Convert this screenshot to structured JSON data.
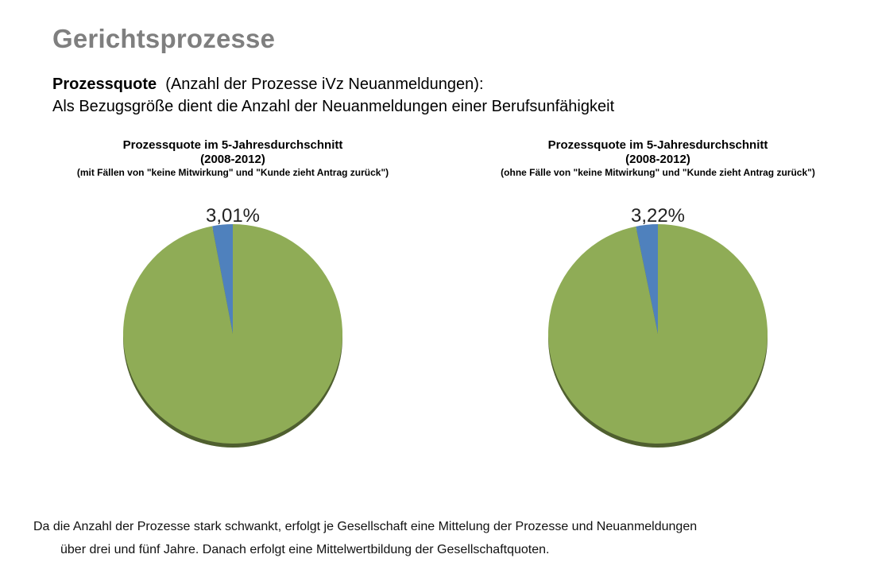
{
  "page": {
    "title": "Gerichtsprozesse",
    "subtitle_bold": "Prozessquote",
    "subtitle_rest": "(Anzahl der Prozesse iVz Neuanmeldungen):",
    "subtitle_line2": "Als Bezugsgröße dient die Anzahl der Neuanmeldungen einer Berufsunfähigkeit",
    "footer_line1": "Da die Anzahl der Prozesse stark schwankt, erfolgt je Gesellschaft eine Mittelung der Prozesse und Neuanmeldungen",
    "footer_line2": "über drei und fünf Jahre. Danach erfolgt eine Mittelwertbildung der Gesellschaftquoten."
  },
  "chart_data": [
    {
      "type": "pie",
      "title": "Prozessquote im 5-Jahresdurchschnitt",
      "title_line2": "(2008-2012)",
      "subtitle": "(mit Fällen von \"keine Mitwirkung\" und \"Kunde zieht Antrag zurück\")",
      "data_label": "3,01%",
      "slices": [
        {
          "value": 3.01,
          "color": "#4f81bd"
        },
        {
          "value": 96.99,
          "color": "#8fac56"
        }
      ]
    },
    {
      "type": "pie",
      "title": "Prozessquote im 5-Jahresdurchschnitt",
      "title_line2": "(2008-2012)",
      "subtitle": "(ohne Fälle von \"keine Mitwirkung\" und \"Kunde zieht Antrag zurück\")",
      "data_label": "3,22%",
      "slices": [
        {
          "value": 3.22,
          "color": "#4f81bd"
        },
        {
          "value": 96.78,
          "color": "#8fac56"
        }
      ]
    }
  ]
}
